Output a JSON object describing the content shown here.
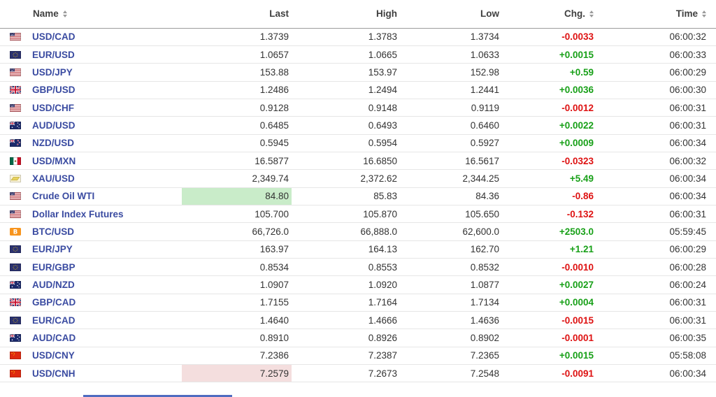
{
  "table": {
    "columns": {
      "name": {
        "label": "Name",
        "sortable": true
      },
      "last": {
        "label": "Last",
        "sortable": false
      },
      "high": {
        "label": "High",
        "sortable": false
      },
      "low": {
        "label": "Low",
        "sortable": false
      },
      "chg": {
        "label": "Chg.",
        "sortable": true
      },
      "time": {
        "label": "Time",
        "sortable": true
      }
    },
    "rows": [
      {
        "flag": "us",
        "name": "USD/CAD",
        "last": "1.3739",
        "high": "1.3783",
        "low": "1.3734",
        "chg": "-0.0033",
        "dir": "down",
        "time": "06:00:32"
      },
      {
        "flag": "eu",
        "name": "EUR/USD",
        "last": "1.0657",
        "high": "1.0665",
        "low": "1.0633",
        "chg": "+0.0015",
        "dir": "up",
        "time": "06:00:33"
      },
      {
        "flag": "us",
        "name": "USD/JPY",
        "last": "153.88",
        "high": "153.97",
        "low": "152.98",
        "chg": "+0.59",
        "dir": "up",
        "time": "06:00:29"
      },
      {
        "flag": "uk",
        "name": "GBP/USD",
        "last": "1.2486",
        "high": "1.2494",
        "low": "1.2441",
        "chg": "+0.0036",
        "dir": "up",
        "time": "06:00:30"
      },
      {
        "flag": "us",
        "name": "USD/CHF",
        "last": "0.9128",
        "high": "0.9148",
        "low": "0.9119",
        "chg": "-0.0012",
        "dir": "down",
        "time": "06:00:31"
      },
      {
        "flag": "au",
        "name": "AUD/USD",
        "last": "0.6485",
        "high": "0.6493",
        "low": "0.6460",
        "chg": "+0.0022",
        "dir": "up",
        "time": "06:00:31"
      },
      {
        "flag": "nz",
        "name": "NZD/USD",
        "last": "0.5945",
        "high": "0.5954",
        "low": "0.5927",
        "chg": "+0.0009",
        "dir": "up",
        "time": "06:00:34"
      },
      {
        "flag": "mx",
        "name": "USD/MXN",
        "last": "16.5877",
        "high": "16.6850",
        "low": "16.5617",
        "chg": "-0.0323",
        "dir": "down",
        "time": "06:00:32"
      },
      {
        "flag": "gold",
        "name": "XAU/USD",
        "last": "2,349.74",
        "high": "2,372.62",
        "low": "2,344.25",
        "chg": "+5.49",
        "dir": "up",
        "time": "06:00:34"
      },
      {
        "flag": "us",
        "name": "Crude Oil WTI",
        "last": "84.80",
        "high": "85.83",
        "low": "84.36",
        "chg": "-0.86",
        "dir": "down",
        "time": "06:00:34",
        "last_flash": "up"
      },
      {
        "flag": "us",
        "name": "Dollar Index Futures",
        "last": "105.700",
        "high": "105.870",
        "low": "105.650",
        "chg": "-0.132",
        "dir": "down",
        "time": "06:00:31"
      },
      {
        "flag": "btc",
        "name": "BTC/USD",
        "last": "66,726.0",
        "high": "66,888.0",
        "low": "62,600.0",
        "chg": "+2503.0",
        "dir": "up",
        "time": "05:59:45"
      },
      {
        "flag": "eu",
        "name": "EUR/JPY",
        "last": "163.97",
        "high": "164.13",
        "low": "162.70",
        "chg": "+1.21",
        "dir": "up",
        "time": "06:00:29"
      },
      {
        "flag": "eu",
        "name": "EUR/GBP",
        "last": "0.8534",
        "high": "0.8553",
        "low": "0.8532",
        "chg": "-0.0010",
        "dir": "down",
        "time": "06:00:28"
      },
      {
        "flag": "au",
        "name": "AUD/NZD",
        "last": "1.0907",
        "high": "1.0920",
        "low": "1.0877",
        "chg": "+0.0027",
        "dir": "up",
        "time": "06:00:24"
      },
      {
        "flag": "uk",
        "name": "GBP/CAD",
        "last": "1.7155",
        "high": "1.7164",
        "low": "1.7134",
        "chg": "+0.0004",
        "dir": "up",
        "time": "06:00:31"
      },
      {
        "flag": "eu",
        "name": "EUR/CAD",
        "last": "1.4640",
        "high": "1.4666",
        "low": "1.4636",
        "chg": "-0.0015",
        "dir": "down",
        "time": "06:00:31"
      },
      {
        "flag": "au",
        "name": "AUD/CAD",
        "last": "0.8910",
        "high": "0.8926",
        "low": "0.8902",
        "chg": "-0.0001",
        "dir": "down",
        "time": "06:00:35"
      },
      {
        "flag": "cn",
        "name": "USD/CNY",
        "last": "7.2386",
        "high": "7.2387",
        "low": "7.2365",
        "chg": "+0.0015",
        "dir": "up",
        "time": "05:58:08"
      },
      {
        "flag": "cn",
        "name": "USD/CNH",
        "last": "7.2579",
        "high": "7.2673",
        "low": "7.2548",
        "chg": "-0.0091",
        "dir": "down",
        "time": "06:00:34",
        "last_flash": "down"
      }
    ]
  },
  "colors": {
    "positive_text": "#18a018",
    "negative_text": "#de1212",
    "flash_up_bg": "#c9ecc9",
    "flash_down_bg": "#f4dede",
    "pair_link": "#3a4ba1"
  }
}
